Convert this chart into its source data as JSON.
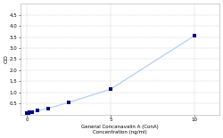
{
  "title_line1": "General Concanavalin A (ConA)",
  "title_line2": "Concentration (ng/ml)",
  "ylabel": "OD",
  "x_data": [
    0,
    0.078,
    0.156,
    0.313,
    0.625,
    1.25,
    2.5,
    5,
    10
  ],
  "y_data": [
    0.08,
    0.09,
    0.1,
    0.13,
    0.18,
    0.28,
    0.55,
    1.15,
    3.55
  ],
  "line_color": "#aaccee",
  "marker_color": "#00008B",
  "background_color": "#ffffff",
  "grid_color": "#cccccc",
  "ylim": [
    0,
    5.0
  ],
  "xlim": [
    -0.4,
    11.5
  ],
  "yticks": [
    0.5,
    1.0,
    1.5,
    2.0,
    2.5,
    3.0,
    3.5,
    4.0,
    4.5
  ],
  "xticks": [
    0,
    5,
    10
  ],
  "xlabel_fontsize": 4.0,
  "ylabel_fontsize": 4.5,
  "tick_fontsize": 4.0,
  "marker_size": 6,
  "linewidth": 0.8
}
